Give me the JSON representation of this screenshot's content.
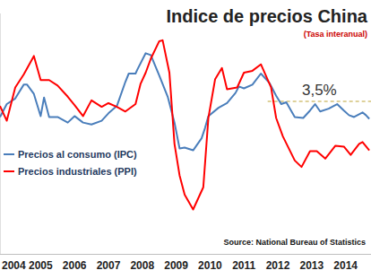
{
  "chart_data": {
    "type": "line",
    "title": "Indice de precios China",
    "subtitle": "(Tasa interanual)",
    "source": "Source: National Bureau of Statistics",
    "legend": "left",
    "tick_labels": "x",
    "xlim": [
      2003.8,
      2014.75
    ],
    "ylim": [
      -13,
      13
    ],
    "xticks": [
      2004,
      2005,
      2006,
      2007,
      2008,
      2009,
      2010,
      2011,
      2012,
      2013,
      2014
    ],
    "annotations": [
      {
        "text": "3,5%",
        "y": 3.5,
        "x": [
          2011.7,
          2014.75
        ]
      }
    ],
    "series": [
      {
        "name": "Precios al consumo (IPC)",
        "color": "#4a7ebb",
        "x": [
          2003.8,
          2004.0,
          2004.25,
          2004.5,
          2004.6,
          2004.8,
          2005.0,
          2005.1,
          2005.25,
          2005.5,
          2005.8,
          2006.0,
          2006.25,
          2006.5,
          2006.8,
          2007.0,
          2007.25,
          2007.5,
          2007.6,
          2007.8,
          2007.85,
          2008.1,
          2008.25,
          2008.5,
          2008.75,
          2008.95,
          2009.1,
          2009.25,
          2009.5,
          2009.75,
          2009.85,
          2009.95,
          2010.25,
          2010.5,
          2010.75,
          2010.85,
          2011.0,
          2011.25,
          2011.5,
          2011.75,
          2011.95,
          2012.1,
          2012.25,
          2012.5,
          2012.75,
          2012.95,
          2013.1,
          2013.25,
          2013.5,
          2013.75,
          2013.95,
          2014.1,
          2014.25,
          2014.5,
          2014.6,
          2014.7
        ],
        "values": [
          1.8,
          3.2,
          3.8,
          5.3,
          5.3,
          4.3,
          1.9,
          3.9,
          1.8,
          1.8,
          1.2,
          1.9,
          1.2,
          1.0,
          1.4,
          2.2,
          3.0,
          5.6,
          6.5,
          6.5,
          6.9,
          8.7,
          8.5,
          6.3,
          4.0,
          1.2,
          -1.6,
          -1.5,
          -1.8,
          -0.5,
          0.6,
          1.9,
          2.8,
          3.3,
          4.4,
          5.1,
          4.9,
          5.3,
          6.5,
          5.5,
          4.1,
          3.2,
          3.4,
          1.8,
          1.7,
          2.5,
          3.2,
          2.4,
          2.7,
          3.2,
          2.5,
          2.0,
          1.8,
          2.3,
          2.0,
          1.6
        ]
      },
      {
        "name": "Precios industriales (PPI)",
        "color": "#ff0000",
        "x": [
          2003.8,
          2004.0,
          2004.25,
          2004.5,
          2004.8,
          2005.0,
          2005.25,
          2005.5,
          2005.8,
          2006.0,
          2006.25,
          2006.5,
          2006.8,
          2007.0,
          2007.25,
          2007.5,
          2007.8,
          2007.95,
          2008.1,
          2008.25,
          2008.5,
          2008.6,
          2008.8,
          2008.95,
          2009.1,
          2009.25,
          2009.5,
          2009.8,
          2009.95,
          2010.15,
          2010.35,
          2010.5,
          2010.8,
          2011.0,
          2011.25,
          2011.5,
          2011.8,
          2011.95,
          2012.15,
          2012.5,
          2012.7,
          2012.95,
          2013.15,
          2013.4,
          2013.7,
          2013.95,
          2014.15,
          2014.4,
          2014.5,
          2014.7
        ],
        "values": [
          3.0,
          1.4,
          5.0,
          6.4,
          8.4,
          5.8,
          5.8,
          5.2,
          4.0,
          3.1,
          1.9,
          3.6,
          2.9,
          3.3,
          2.9,
          2.4,
          3.2,
          5.4,
          6.6,
          8.1,
          10.0,
          10.1,
          6.6,
          -1.1,
          -4.5,
          -6.6,
          -8.2,
          -5.8,
          1.7,
          5.9,
          7.1,
          4.8,
          5.0,
          6.6,
          6.8,
          7.5,
          5.0,
          1.7,
          -0.3,
          -2.9,
          -3.6,
          -1.9,
          -1.9,
          -2.7,
          -1.3,
          -1.4,
          -2.3,
          -1.1,
          -0.9,
          -1.8
        ]
      }
    ]
  }
}
